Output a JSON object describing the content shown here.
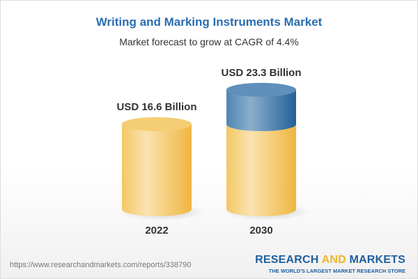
{
  "chart_data": {
    "type": "bar",
    "style": "3d-cylinder",
    "title": "Writing and Marking Instruments Market",
    "subtitle": "Market forecast to grow at CAGR of 4.4%",
    "categories": [
      "2022",
      "2030"
    ],
    "values": [
      16.6,
      23.3
    ],
    "data_labels": [
      "USD 16.6 Billion",
      "USD 23.3 Billion"
    ],
    "unit": "USD Billion",
    "grid": false,
    "colors": {
      "base": "#f2c155",
      "growth": "#3f78a8"
    }
  },
  "footer": {
    "url": "https://www.researchandmarkets.com/reports/338790",
    "logo_part1": "RESEARCH ",
    "logo_part2": "AND",
    "logo_part3": " MARKETS",
    "logo_tagline": "THE WORLD'S LARGEST MARKET RESEARCH STORE"
  }
}
